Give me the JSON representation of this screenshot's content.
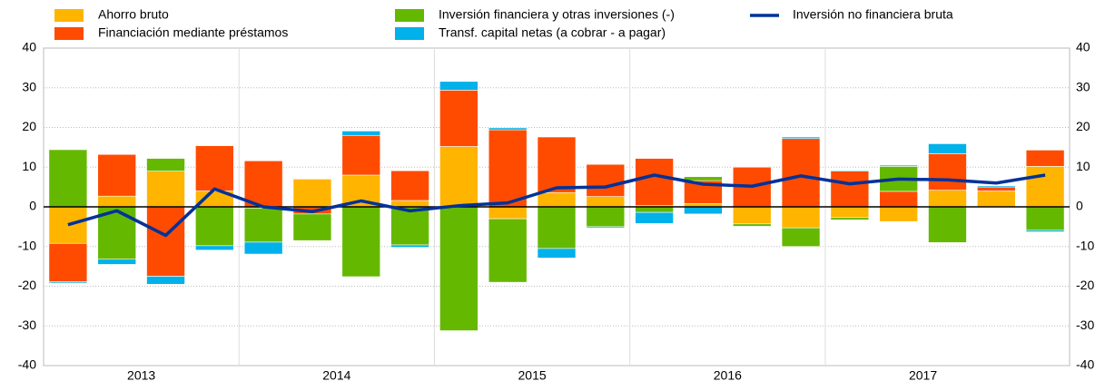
{
  "chart_data": {
    "type": "bar",
    "stacked": true,
    "categories": [
      "2013",
      null,
      null,
      null,
      "2014",
      null,
      null,
      null,
      "2015",
      null,
      null,
      null,
      "2016",
      null,
      null,
      null,
      "2017",
      null,
      null,
      null,
      null
    ],
    "series": [
      {
        "name": "Ahorro bruto",
        "color": "#FFB400",
        "values": [
          -9.2,
          2.7,
          9,
          4,
          -0.3,
          7,
          8,
          1.6,
          15.2,
          -3,
          3.6,
          2.6,
          0.3,
          0.8,
          -4.3,
          -5.3,
          -2.7,
          -3.7,
          4.2,
          4,
          10.2
        ]
      },
      {
        "name": "Financiación mediante préstamos",
        "color": "#FF4B00",
        "values": [
          -9.7,
          10.5,
          -17.5,
          11.4,
          11.6,
          -1.8,
          10,
          7.5,
          14.2,
          19.4,
          14,
          8.1,
          11.9,
          5.8,
          10,
          17.2,
          9,
          3.9,
          9.2,
          1,
          4.1
        ]
      },
      {
        "name": "Inversión financiera y otras inversiones (-)",
        "color": "#65B800",
        "values": [
          14.4,
          -13.2,
          3.2,
          -9.8,
          -8.6,
          -6.7,
          -17.6,
          -9.6,
          -31.2,
          -16,
          -10.5,
          -5,
          -1.4,
          1,
          -0.6,
          -4.7,
          -0.6,
          6.3,
          -9,
          0,
          -5.9
        ]
      },
      {
        "name": "Transf. capital netas (a cobrar - a pagar)",
        "color": "#00B1EA",
        "values": [
          -0.3,
          -1.3,
          -2,
          -1.1,
          -3,
          0,
          1.1,
          -0.6,
          2.2,
          0.5,
          -2.4,
          -0.3,
          -2.8,
          -1.8,
          0,
          0.4,
          0.2,
          0.3,
          2.5,
          0.3,
          -0.4
        ]
      },
      {
        "name": "Inversión no financiera bruta",
        "color": "#003299",
        "type": "line",
        "values": [
          -4.5,
          -1,
          -7.2,
          4.5,
          0,
          -1.2,
          1.5,
          -1,
          0.3,
          1,
          4.8,
          5,
          8,
          5.7,
          5.2,
          7.8,
          5.8,
          7,
          6.8,
          6,
          8
        ]
      }
    ],
    "ylim": [
      -40,
      40
    ],
    "yticks": [
      -40,
      -30,
      -20,
      -10,
      0,
      10,
      20,
      30,
      40
    ],
    "grid": true
  }
}
